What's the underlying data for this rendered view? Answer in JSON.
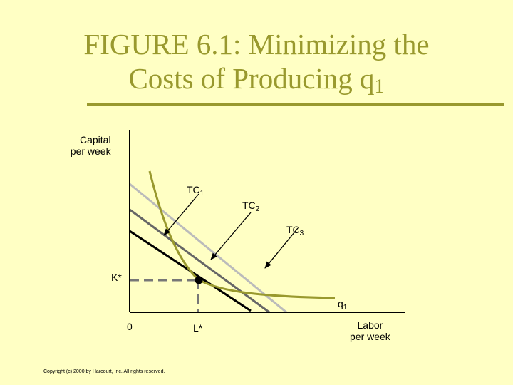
{
  "title": {
    "line1": "FIGURE 6.1: Minimizing the",
    "line2": "Costs of Producing q",
    "line2_sub": "1"
  },
  "axes": {
    "y_label_line1": "Capital",
    "y_label_line2": "per week",
    "x_label_line1": "Labor",
    "x_label_line2": "per week",
    "origin": "0"
  },
  "labels": {
    "tc1": "TC",
    "tc1_sub": "1",
    "tc2": "TC",
    "tc2_sub": "2",
    "tc3": "TC",
    "tc3_sub": "3",
    "kstar": "K*",
    "lstar": "L*",
    "q": "q",
    "q_sub": "1"
  },
  "copyright": "Copyright (c) 2000 by Harcourt, Inc.  All rights reserved.",
  "colors": {
    "background": "#ffffc4",
    "title": "#99992e",
    "isoquant": "#99992e",
    "tc1_line": "#000000",
    "tc2_line": "#666666",
    "tc3_line": "#bbbbbb",
    "dashed": "#777777"
  }
}
